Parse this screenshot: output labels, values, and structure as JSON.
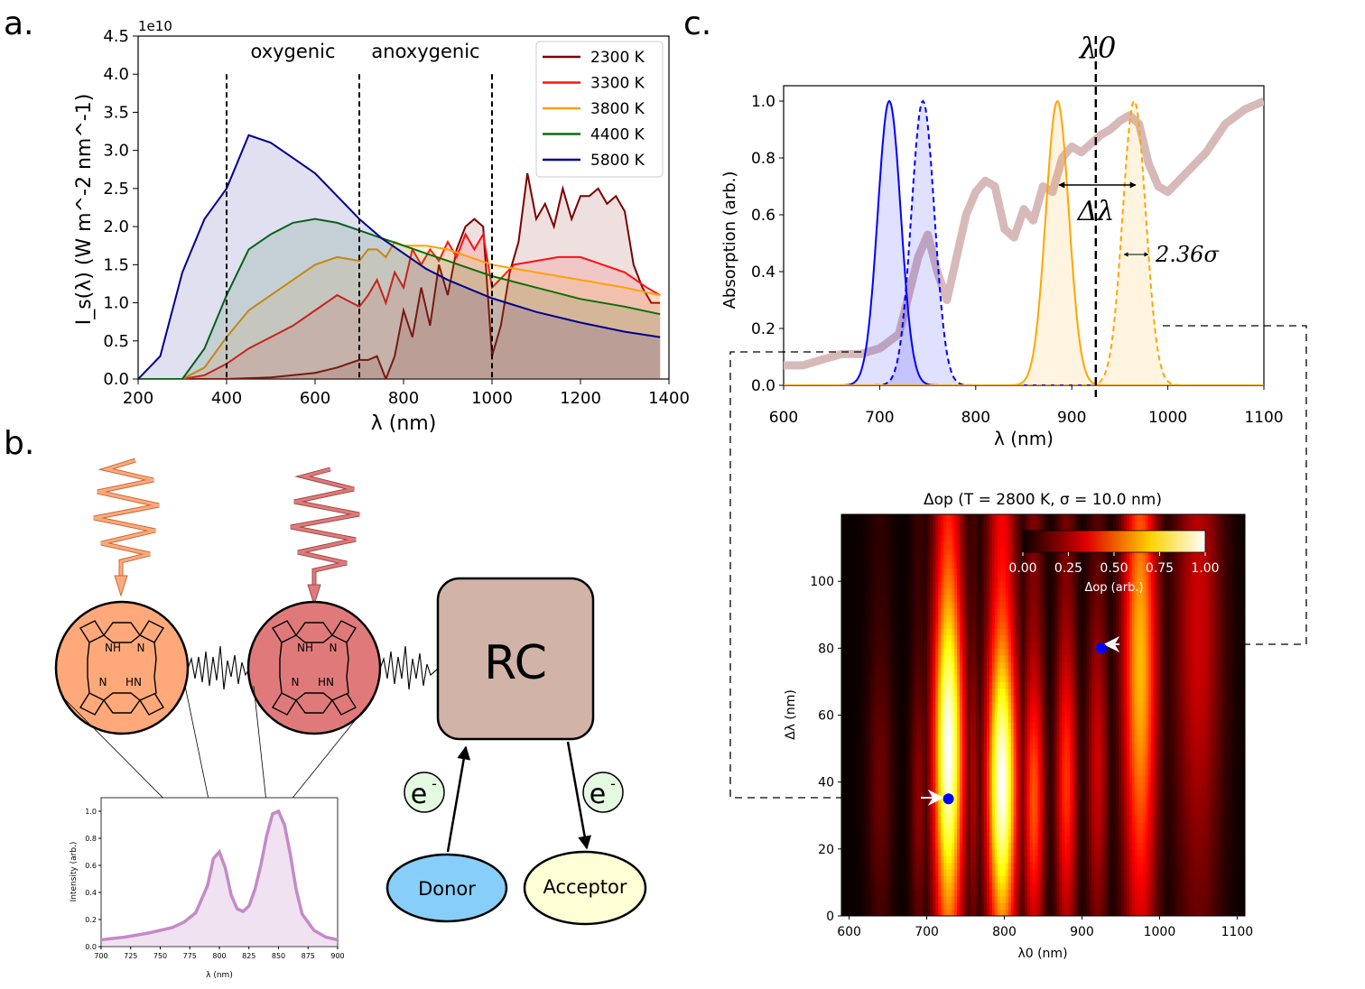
{
  "panels": {
    "a": "a.",
    "b": "b.",
    "c": "c."
  },
  "chart_data": [
    {
      "type": "area",
      "id": "spectra",
      "xlabel": "λ (nm)",
      "ylabel": "I_s(λ) (W m^-2 nm^-1)",
      "yscale": "1e10",
      "xlim": [
        200,
        1400
      ],
      "ylim": [
        0,
        4.5
      ],
      "xticks": [
        "200",
        "400",
        "600",
        "800",
        "1000",
        "1200",
        "1400"
      ],
      "yticks": [
        "0.0",
        "0.5",
        "1.0",
        "1.5",
        "2.0",
        "2.5",
        "3.0",
        "3.5",
        "4.0",
        "4.5"
      ],
      "region_labels": [
        "oxygenic",
        "anoxygenic"
      ],
      "region_boundaries": [
        400,
        700,
        1000
      ],
      "series": [
        {
          "name": "2300 K",
          "color": "#7b0000",
          "x": [
            200,
            400,
            500,
            600,
            650,
            700,
            720,
            740,
            760,
            780,
            800,
            820,
            840,
            860,
            880,
            900,
            920,
            940,
            960,
            980,
            1000,
            1020,
            1040,
            1060,
            1080,
            1100,
            1120,
            1140,
            1160,
            1180,
            1200,
            1220,
            1240,
            1260,
            1280,
            1300,
            1320,
            1340,
            1360,
            1380
          ],
          "y": [
            0,
            0,
            0.02,
            0.08,
            0.15,
            0.25,
            0.25,
            0.3,
            0.0,
            0.3,
            0.9,
            0.55,
            1.2,
            0.7,
            1.5,
            1.1,
            1.7,
            2.0,
            2.1,
            2.0,
            0.3,
            0.7,
            1.4,
            1.8,
            2.7,
            2.1,
            2.3,
            2.0,
            2.5,
            2.1,
            2.4,
            2.4,
            2.5,
            2.3,
            2.4,
            2.2,
            1.5,
            1.2,
            1.0,
            1.0
          ]
        },
        {
          "name": "3300 K",
          "color": "#ff1010",
          "x": [
            200,
            300,
            350,
            400,
            450,
            500,
            550,
            600,
            650,
            700,
            720,
            740,
            760,
            780,
            800,
            820,
            840,
            860,
            880,
            900,
            920,
            940,
            960,
            980,
            1000,
            1050,
            1100,
            1150,
            1200,
            1250,
            1300,
            1350,
            1380
          ],
          "y": [
            0,
            0,
            0.05,
            0.2,
            0.4,
            0.55,
            0.7,
            0.9,
            1.1,
            0.95,
            1.1,
            1.3,
            1.0,
            1.4,
            1.2,
            1.7,
            1.5,
            1.7,
            1.55,
            1.8,
            1.6,
            1.9,
            1.7,
            1.9,
            1.2,
            1.5,
            1.55,
            1.6,
            1.6,
            1.5,
            1.4,
            1.2,
            1.1
          ]
        },
        {
          "name": "3800 K",
          "color": "#ffa000",
          "x": [
            200,
            300,
            350,
            400,
            450,
            500,
            550,
            600,
            650,
            700,
            720,
            740,
            760,
            780,
            800,
            850,
            900,
            950,
            1000,
            1100,
            1200,
            1300,
            1380
          ],
          "y": [
            0,
            0,
            0.15,
            0.55,
            0.9,
            1.1,
            1.3,
            1.5,
            1.6,
            1.55,
            1.7,
            1.7,
            1.6,
            1.8,
            1.75,
            1.75,
            1.7,
            1.6,
            1.5,
            1.4,
            1.3,
            1.2,
            1.1
          ]
        },
        {
          "name": "4400 K",
          "color": "#0a6e0a",
          "x": [
            200,
            300,
            350,
            400,
            450,
            500,
            550,
            600,
            650,
            700,
            750,
            800,
            850,
            900,
            950,
            1000,
            1100,
            1200,
            1300,
            1380
          ],
          "y": [
            0,
            0,
            0.4,
            1.1,
            1.7,
            1.9,
            2.05,
            2.1,
            2.05,
            1.95,
            1.85,
            1.75,
            1.65,
            1.55,
            1.45,
            1.35,
            1.2,
            1.05,
            0.95,
            0.85
          ]
        },
        {
          "name": "5800 K",
          "color": "#00008b",
          "x": [
            200,
            250,
            300,
            350,
            400,
            450,
            500,
            550,
            600,
            650,
            700,
            750,
            800,
            850,
            900,
            950,
            1000,
            1100,
            1200,
            1300,
            1380
          ],
          "y": [
            0,
            0.3,
            1.4,
            2.1,
            2.5,
            3.2,
            3.1,
            2.9,
            2.7,
            2.4,
            2.1,
            1.85,
            1.65,
            1.45,
            1.3,
            1.18,
            1.06,
            0.88,
            0.74,
            0.62,
            0.55
          ]
        }
      ]
    },
    {
      "type": "area",
      "id": "inset-emission",
      "xlabel": "λ (nm)",
      "ylabel": "Intensity (arb.)",
      "xlim": [
        700,
        900
      ],
      "ylim": [
        0,
        1.1
      ],
      "xticks": [
        "700",
        "725",
        "750",
        "775",
        "800",
        "825",
        "850",
        "875",
        "900"
      ],
      "yticks": [
        "0.0",
        "0.2",
        "0.4",
        "0.6",
        "0.8",
        "1.0"
      ],
      "series": [
        {
          "name": "emission",
          "color": "#c48ac8",
          "x": [
            700,
            720,
            740,
            760,
            770,
            780,
            790,
            795,
            800,
            805,
            810,
            815,
            820,
            825,
            830,
            835,
            840,
            845,
            850,
            855,
            860,
            865,
            870,
            880,
            890,
            900
          ],
          "y": [
            0.05,
            0.07,
            0.1,
            0.14,
            0.18,
            0.25,
            0.45,
            0.65,
            0.7,
            0.58,
            0.38,
            0.28,
            0.26,
            0.3,
            0.42,
            0.6,
            0.82,
            0.98,
            1.0,
            0.9,
            0.68,
            0.42,
            0.24,
            0.12,
            0.07,
            0.05
          ]
        }
      ]
    },
    {
      "type": "line",
      "id": "absorption",
      "xlabel": "λ (nm)",
      "ylabel": "Absorption (arb.)",
      "xlim": [
        600,
        1100
      ],
      "ylim": [
        0,
        1.05
      ],
      "xticks": [
        "600",
        "700",
        "800",
        "900",
        "1000",
        "1100"
      ],
      "yticks": [
        "0.0",
        "0.2",
        "0.4",
        "0.6",
        "0.8",
        "1.0"
      ],
      "lambda0": 925,
      "annotations": [
        "λ0",
        "Δλ",
        "2.36σ"
      ],
      "background": {
        "color": "#d8b9b9",
        "x": [
          600,
          620,
          640,
          660,
          680,
          700,
          720,
          740,
          750,
          760,
          770,
          780,
          790,
          800,
          810,
          820,
          830,
          840,
          850,
          860,
          870,
          880,
          890,
          900,
          910,
          920,
          930,
          940,
          950,
          960,
          970,
          980,
          990,
          1000,
          1020,
          1040,
          1060,
          1080,
          1100
        ],
        "y": [
          0.07,
          0.07,
          0.09,
          0.11,
          0.11,
          0.13,
          0.18,
          0.45,
          0.53,
          0.4,
          0.3,
          0.45,
          0.6,
          0.68,
          0.72,
          0.7,
          0.55,
          0.52,
          0.62,
          0.58,
          0.7,
          0.68,
          0.8,
          0.84,
          0.82,
          0.85,
          0.88,
          0.9,
          0.93,
          0.95,
          0.92,
          0.78,
          0.7,
          0.68,
          0.75,
          0.82,
          0.92,
          0.97,
          1.0
        ]
      },
      "peaks": [
        {
          "center": 710,
          "width": 12,
          "color": "#0000ff",
          "style": "solid"
        },
        {
          "center": 745,
          "width": 12,
          "color": "#0000ff",
          "style": "dashed"
        },
        {
          "center": 885,
          "width": 12,
          "color": "#ffa500",
          "style": "solid"
        },
        {
          "center": 965,
          "width": 12,
          "color": "#ffa500",
          "style": "dashed"
        }
      ]
    },
    {
      "type": "heatmap",
      "id": "delta-op",
      "title": "Δop (T = 2800 K, σ = 10.0 nm)",
      "xlabel": "λ0 (nm)",
      "ylabel": "Δλ (nm)",
      "xlim": [
        590,
        1110
      ],
      "ylim": [
        0,
        120
      ],
      "xticks": [
        "600",
        "700",
        "800",
        "900",
        "1000",
        "1100"
      ],
      "yticks": [
        "0",
        "20",
        "40",
        "60",
        "80",
        "100"
      ],
      "colorbar_label": "Δop (arb.)",
      "colorbar_ticks": [
        "0.00",
        "0.25",
        "0.50",
        "0.75",
        "1.00"
      ],
      "bands": [
        {
          "center": 640,
          "width": 12,
          "amp": 0.15,
          "dl_peak": 40
        },
        {
          "center": 690,
          "width": 8,
          "amp": 0.2,
          "dl_peak": 35
        },
        {
          "center": 728,
          "width": 14,
          "amp": 1.0,
          "dl_peak": 50
        },
        {
          "center": 760,
          "width": 6,
          "amp": 0.25,
          "dl_peak": 40
        },
        {
          "center": 797,
          "width": 14,
          "amp": 1.0,
          "dl_peak": 40
        },
        {
          "center": 838,
          "width": 10,
          "amp": 0.5,
          "dl_peak": 35
        },
        {
          "center": 880,
          "width": 10,
          "amp": 0.45,
          "dl_peak": 40
        },
        {
          "center": 920,
          "width": 10,
          "amp": 0.3,
          "dl_peak": 45
        },
        {
          "center": 975,
          "width": 16,
          "amp": 0.65,
          "dl_peak": 75
        },
        {
          "center": 1050,
          "width": 22,
          "amp": 0.3,
          "dl_peak": 85
        }
      ],
      "points": [
        {
          "lambda0": 728,
          "dl": 35,
          "color": "#0000ff"
        },
        {
          "lambda0": 925,
          "dl": 80,
          "color": "#0000ff"
        }
      ]
    }
  ],
  "diagram": {
    "rc_label": "RC",
    "electron_label": "e",
    "electron_sup": "-",
    "donor_label": "Donor",
    "acceptor_label": "Acceptor",
    "nh_label": "NH",
    "hn_label": "HN",
    "n_label": "N",
    "antenna_colors": [
      "#ffa97a",
      "#e07a7a"
    ],
    "rc_color": "#d1b3a8",
    "donor_color": "#87cffa",
    "acceptor_color": "#ffffd5",
    "electron_color": "#e4f8e2"
  }
}
